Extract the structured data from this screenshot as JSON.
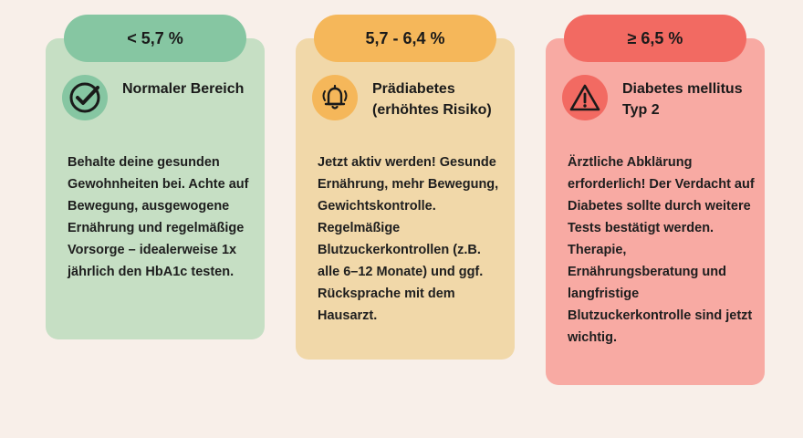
{
  "categories": [
    {
      "range": "< 5,7 %",
      "title": "Normaler Bereich",
      "icon": "checkmark-circle-icon",
      "text": "Behalte deine gesunden Gewohnheiten bei. Achte auf Bewegung, ausgewogene Ernährung und regelmäßige Vorsorge – idealerweise 1x jährlich den HbA1c testen.",
      "colors": {
        "pill": "#86c6a2",
        "card": "#c6dfc4"
      }
    },
    {
      "range": "5,7 - 6,4 %",
      "title": "Prädiabetes (erhöhtes Risiko)",
      "icon": "bell-icon",
      "text": "Jetzt aktiv werden! Gesunde Ernährung, mehr Bewegung, Gewichtskontrolle. Regelmäßige Blutzuckerkontrollen (z.B. alle 6–12 Monate) und ggf. Rücksprache mit dem Hausarzt.",
      "colors": {
        "pill": "#f5b75a",
        "card": "#f1d8a9"
      }
    },
    {
      "range": "≥ 6,5 %",
      "title": "Diabetes mellitus Typ 2",
      "icon": "warning-triangle-icon",
      "text": "Ärztliche Abklärung erforderlich! Der Verdacht auf Diabetes sollte durch weitere Tests bestätigt werden. Therapie, Ernährungsberatung und langfristige Blutzuckerkontrolle sind jetzt wichtig.",
      "colors": {
        "pill": "#f26a62",
        "card": "#f8aaa3"
      }
    }
  ]
}
